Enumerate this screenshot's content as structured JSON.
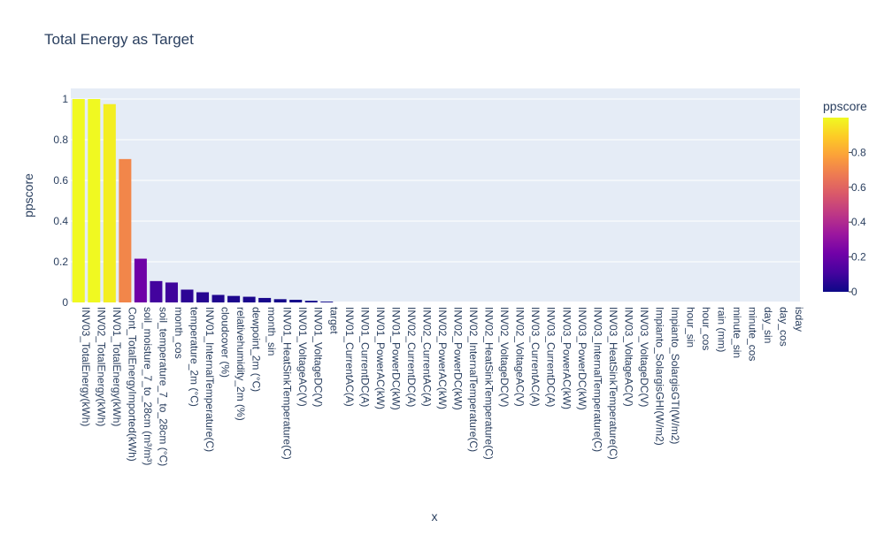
{
  "chart_data": {
    "type": "bar",
    "title": "Total Energy as Target",
    "xlabel": "x",
    "ylabel": "ppscore",
    "ylim": [
      0,
      1.0
    ],
    "yticks": [
      0,
      0.2,
      0.4,
      0.6,
      0.8,
      1
    ],
    "ytick_labels": [
      "0",
      "0.2",
      "0.4",
      "0.6",
      "0.8",
      "1"
    ],
    "grid": true,
    "colorbar": {
      "title": "ppscore",
      "range": [
        0,
        1
      ],
      "ticks": [
        0,
        0.2,
        0.4,
        0.6,
        0.8
      ],
      "tick_labels": [
        "0",
        "0.2",
        "0.4",
        "0.6",
        "0.8"
      ],
      "colorscale": [
        "#0d0887",
        "#46039f",
        "#7201a8",
        "#9c179e",
        "#bd3786",
        "#d8576b",
        "#ed7953",
        "#fb9f3a",
        "#fdca26",
        "#f0f921"
      ]
    },
    "colors": {
      "plot_bg": "#e5ecf6",
      "grid": "#ffffff",
      "text": "#2a3f5f"
    },
    "categories": [
      "INV03_TotalEnergy(kWh)",
      "INV02_TotalEnergy(kWh)",
      "INV01_TotalEnergy(kWh)",
      "Cont_TotalEnergyImported(kWh)",
      "soil_moisture_7_to_28cm (m³/m³)",
      "soil_temperature_7_to_28cm (°C)",
      "month_cos",
      "temperature_2m (°C)",
      "INV01_InternalTemperature(C)",
      "cloudcover (%)",
      "relativehumidity_2m (%)",
      "dewpoint_2m (°C)",
      "month_sin",
      "INV01_HeatSinkTemperature(C)",
      "INV01_VoltageAC(V)",
      "INV01_VoltageDC(V)",
      "target",
      "INV01_CurrentAC(A)",
      "INV01_CurrentDC(A)",
      "INV01_PowerAC(kW)",
      "INV01_PowerDC(kW)",
      "INV02_CurrentDC(A)",
      "INV02_CurrentAC(A)",
      "INV02_PowerAC(kW)",
      "INV02_PowerDC(kW)",
      "INV02_InternalTemperature(C)",
      "INV02_HeatSinkTemperature(C)",
      "INV02_VoltageDC(V)",
      "INV02_VoltageAC(V)",
      "INV03_CurrentAC(A)",
      "INV03_CurrentDC(A)",
      "INV03_PowerAC(kW)",
      "INV03_PowerDC(kW)",
      "INV03_InternalTemperature(C)",
      "INV03_HeatSinkTemperature(C)",
      "INV03_VoltageAC(V)",
      "INV03_VoltageDC(V)",
      "Impianto_SolargisGHI(W/m2)",
      "Impianto_SolargisGTI(W/m2)",
      "hour_sin",
      "hour_cos",
      "rain (mm)",
      "minute_sin",
      "minute_cos",
      "day_sin",
      "day_cos",
      "isday"
    ],
    "values": [
      1.0,
      1.0,
      0.975,
      0.705,
      0.215,
      0.105,
      0.098,
      0.063,
      0.05,
      0.037,
      0.032,
      0.028,
      0.022,
      0.016,
      0.013,
      0.008,
      0.004,
      0,
      0,
      0,
      0,
      0,
      0,
      0,
      0,
      0,
      0,
      0,
      0,
      0,
      0,
      0,
      0,
      0,
      0,
      0,
      0,
      0,
      0,
      0,
      0,
      0,
      0,
      0,
      0,
      0,
      0
    ]
  }
}
